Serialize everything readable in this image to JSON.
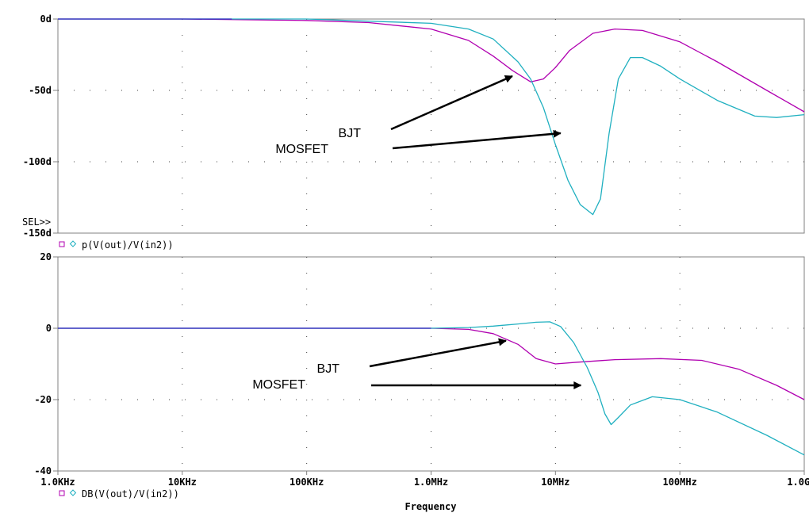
{
  "chart_data": [
    {
      "type": "line",
      "scale": "log-x",
      "xlim": [
        1000,
        1000000000
      ],
      "ylim": [
        -150,
        0
      ],
      "y_ticks": [
        0,
        -50,
        -100,
        -150
      ],
      "y_tick_labels": [
        "0d",
        "-50d",
        "-100d",
        "-150d"
      ],
      "sel_marker": "SEL>>",
      "legend": {
        "symbols": [
          "□",
          "◇"
        ],
        "label": "p(V(out)/V(in2))"
      },
      "series": [
        {
          "name": "BJT",
          "color": "#b000b0",
          "x": [
            1000,
            10000,
            100000,
            316000,
            1000000,
            2000000,
            3160000,
            4500000,
            6310000,
            8000000,
            10000000,
            13000000,
            20000000,
            30000000,
            50000000,
            100000000,
            200000000,
            500000000,
            1000000000
          ],
          "y": [
            0,
            0,
            -1,
            -2.5,
            -7,
            -15,
            -26,
            -36,
            -44,
            -42,
            -34,
            -22,
            -10,
            -7,
            -8,
            -16,
            -30,
            -50,
            -65
          ]
        },
        {
          "name": "MOSFET",
          "color": "#20b0c0",
          "x": [
            1000,
            10000,
            100000,
            1000000,
            2000000,
            3160000,
            5000000,
            6310000,
            8000000,
            10000000,
            12600000,
            15800000,
            20000000,
            23000000,
            27000000,
            32000000,
            40000000,
            50000000,
            70000000,
            100000000,
            200000000,
            400000000,
            600000000,
            1000000000
          ],
          "y": [
            0,
            0,
            0,
            -3,
            -7,
            -14,
            -30,
            -42,
            -62,
            -88,
            -113,
            -130,
            -137,
            -126,
            -80,
            -42,
            -27,
            -27,
            -33,
            -42,
            -57,
            -68,
            -69,
            -67
          ]
        }
      ],
      "annotations": [
        {
          "text": "BJT",
          "target": [
            4500000,
            -40
          ]
        },
        {
          "text": "MOSFET",
          "target": [
            11000000,
            -80
          ]
        }
      ]
    },
    {
      "type": "line",
      "scale": "log-x",
      "xlim": [
        1000,
        1000000000
      ],
      "ylim": [
        -40,
        20
      ],
      "y_ticks": [
        20,
        0,
        -20,
        -40
      ],
      "y_tick_labels": [
        "20",
        "0",
        "-20",
        "-40"
      ],
      "x_ticks": [
        1000,
        10000,
        100000,
        1000000,
        10000000,
        100000000,
        1000000000
      ],
      "x_tick_labels": [
        "1.0KHz",
        "10KHz",
        "100KHz",
        "1.0MHz",
        "10MHz",
        "100MHz",
        "1.0GHz"
      ],
      "xlabel": "Frequency",
      "legend": {
        "symbols": [
          "□",
          "◇"
        ],
        "label": "DB(V(out)/V(in2))"
      },
      "series": [
        {
          "name": "BJT",
          "color": "#b000b0",
          "x": [
            1000,
            10000,
            100000,
            1000000,
            2000000,
            3160000,
            5000000,
            7000000,
            10000000,
            15000000,
            30000000,
            70000000,
            150000000,
            300000000,
            600000000,
            1000000000
          ],
          "y": [
            0,
            0,
            0,
            0,
            -0.3,
            -1.5,
            -4.5,
            -8.5,
            -10,
            -9.5,
            -8.8,
            -8.5,
            -9,
            -11.5,
            -16,
            -20
          ]
        },
        {
          "name": "MOSFET",
          "color": "#20b0c0",
          "x": [
            1000,
            10000,
            100000,
            1000000,
            2000000,
            3160000,
            5000000,
            7000000,
            9000000,
            11000000,
            14000000,
            18000000,
            22000000,
            25000000,
            28000000,
            32000000,
            40000000,
            60000000,
            100000000,
            200000000,
            500000000,
            1000000000
          ],
          "y": [
            0,
            0,
            0,
            0,
            0.2,
            0.6,
            1.2,
            1.7,
            1.8,
            0.5,
            -4,
            -11,
            -18,
            -24,
            -27,
            -25,
            -21.5,
            -19.2,
            -20,
            -23.5,
            -30,
            -35.5
          ]
        }
      ],
      "annotations": [
        {
          "text": "BJT",
          "target": [
            4000000,
            -3.5
          ]
        },
        {
          "text": "MOSFET",
          "target": [
            16000000,
            -16
          ]
        }
      ]
    }
  ]
}
